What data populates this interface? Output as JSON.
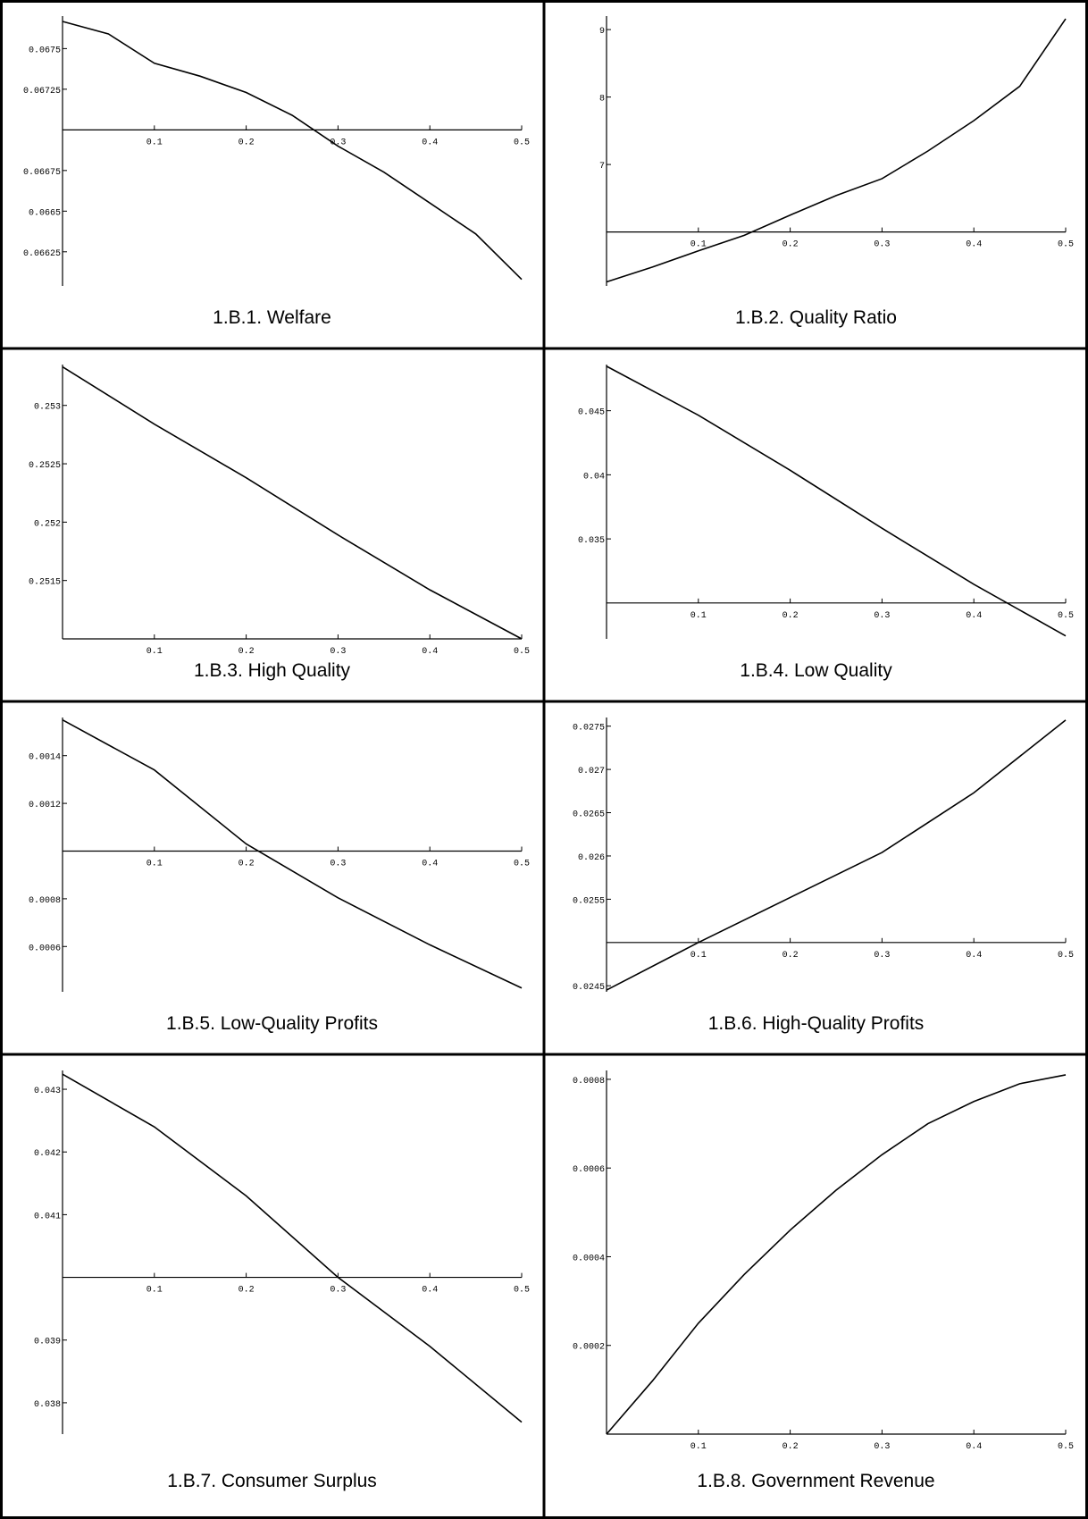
{
  "chart_data": [
    {
      "type": "line",
      "title": "1.B.1. Welfare",
      "color": "#000000",
      "x": [
        0,
        0.05,
        0.1,
        0.15,
        0.2,
        0.25,
        0.3,
        0.35,
        0.4,
        0.45,
        0.5
      ],
      "values": [
        0.067667,
        0.06759,
        0.06741,
        0.06733,
        0.06723,
        0.06709,
        0.0669,
        0.06674,
        0.06655,
        0.06636,
        0.06608
      ],
      "xlim": [
        0,
        0.5
      ],
      "ylim": [
        0.06604,
        0.0677
      ],
      "xticks": [
        0.1,
        0.2,
        0.3,
        0.4,
        0.5
      ],
      "yticks": [
        0.06625,
        0.0665,
        0.06675,
        0.06725,
        0.0675
      ],
      "axis_origin": 0.067
    },
    {
      "type": "line",
      "title": "1.B.2.  Quality Ratio",
      "color": "#000000",
      "x": [
        0,
        0.05,
        0.1,
        0.15,
        0.2,
        0.25,
        0.3,
        0.35,
        0.4,
        0.45,
        0.5
      ],
      "values": [
        5.26,
        5.48,
        5.72,
        5.95,
        6.25,
        6.54,
        6.79,
        7.2,
        7.65,
        8.16,
        9.16
      ],
      "xlim": [
        0,
        0.5
      ],
      "ylim": [
        5.2,
        9.2
      ],
      "xticks": [
        0.1,
        0.2,
        0.3,
        0.4,
        0.5
      ],
      "yticks": [
        7,
        8,
        9
      ],
      "axis_origin": 6
    },
    {
      "type": "line",
      "title": "1.B.3.  High Quality",
      "color": "#000000",
      "x": [
        0,
        0.1,
        0.2,
        0.3,
        0.4,
        0.5
      ],
      "values": [
        0.25333,
        0.25284,
        0.25238,
        0.25189,
        0.25142,
        0.251
      ],
      "xlim": [
        0,
        0.5
      ],
      "ylim": [
        0.251,
        0.25335
      ],
      "xticks": [
        0.1,
        0.2,
        0.3,
        0.4,
        0.5
      ],
      "yticks": [
        0.2515,
        0.252,
        0.2525,
        0.253
      ],
      "axis_origin": 0.251
    },
    {
      "type": "line",
      "title": "1.B.4.  Low Quality",
      "color": "#000000",
      "x": [
        0,
        0.1,
        0.2,
        0.3,
        0.4,
        0.5
      ],
      "values": [
        0.04847,
        0.04465,
        0.04035,
        0.03583,
        0.03146,
        0.02743
      ],
      "xlim": [
        0,
        0.5
      ],
      "ylim": [
        0.0272,
        0.0486
      ],
      "xticks": [
        0.1,
        0.2,
        0.3,
        0.4,
        0.5
      ],
      "yticks": [
        0.035,
        0.04,
        0.045
      ],
      "axis_origin": 0.03
    },
    {
      "type": "line",
      "title": "1.B.5.  Low-Quality Profits",
      "color": "#000000",
      "x": [
        0,
        0.1,
        0.2,
        0.3,
        0.4,
        0.5
      ],
      "values": [
        0.00155,
        0.00134,
        0.00103,
        0.000804,
        0.000607,
        0.000426
      ],
      "xlim": [
        0,
        0.5
      ],
      "ylim": [
        0.00041,
        0.00156
      ],
      "xticks": [
        0.1,
        0.2,
        0.3,
        0.4,
        0.5
      ],
      "yticks": [
        0.0006,
        0.0008,
        0.0012,
        0.0014
      ],
      "axis_origin": 0.001
    },
    {
      "type": "line",
      "title": "1.B.6.  High-Quality Profits",
      "color": "#000000",
      "x": [
        0,
        0.1,
        0.2,
        0.3,
        0.4,
        0.5
      ],
      "values": [
        0.02445,
        0.025,
        0.02552,
        0.02604,
        0.02673,
        0.02757
      ],
      "xlim": [
        0,
        0.5
      ],
      "ylim": [
        0.02443,
        0.0276
      ],
      "xticks": [
        0.1,
        0.2,
        0.3,
        0.4,
        0.5
      ],
      "yticks": [
        0.0245,
        0.0255,
        0.026,
        0.0265,
        0.027,
        0.0275
      ],
      "axis_origin": 0.025
    },
    {
      "type": "line",
      "title": "1.B.7.  Consumer Surplus",
      "color": "#000000",
      "x": [
        0,
        0.1,
        0.2,
        0.3,
        0.4,
        0.5
      ],
      "values": [
        0.04324,
        0.0424,
        0.0413,
        0.04,
        0.0389,
        0.03769
      ],
      "xlim": [
        0,
        0.5
      ],
      "ylim": [
        0.0375,
        0.0433
      ],
      "xticks": [
        0.1,
        0.2,
        0.3,
        0.4,
        0.5
      ],
      "yticks": [
        0.038,
        0.039,
        0.041,
        0.042,
        0.043
      ],
      "axis_origin": 0.04
    },
    {
      "type": "line",
      "title": "1.B.8.  Government Revenue",
      "color": "#000000",
      "x": [
        0,
        0.05,
        0.1,
        0.15,
        0.2,
        0.25,
        0.3,
        0.35,
        0.4,
        0.45,
        0.5
      ],
      "values": [
        0,
        0.00012,
        0.00025,
        0.00036,
        0.00046,
        0.00055,
        0.00063,
        0.0007,
        0.00075,
        0.00079,
        0.00081
      ],
      "xlim": [
        0,
        0.5
      ],
      "ylim": [
        0,
        0.00082
      ],
      "xticks": [
        0.1,
        0.2,
        0.3,
        0.4,
        0.5
      ],
      "yticks": [
        0.0002,
        0.0004,
        0.0006,
        0.0008
      ],
      "axis_origin": 0
    }
  ]
}
